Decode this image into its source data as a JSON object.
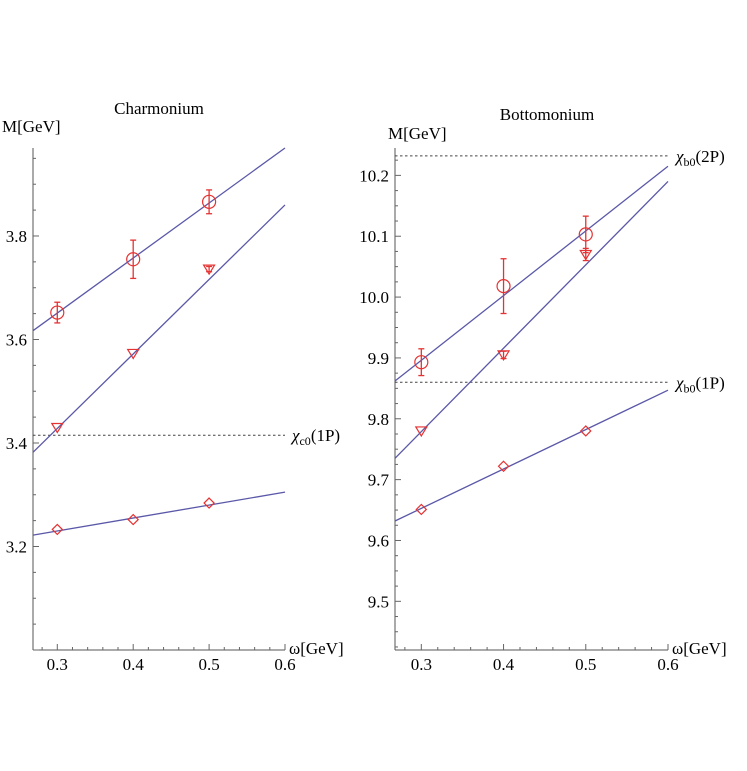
{
  "chart_data": [
    {
      "type": "scatter",
      "title": "Charmonium",
      "xlabel": "ω[GeV]",
      "ylabel": "M[GeV]",
      "xlim": [
        0.268,
        0.6
      ],
      "ylim": [
        3.0,
        3.97
      ],
      "xticks": [
        0.3,
        0.4,
        0.5,
        0.6
      ],
      "xtick_labels": [
        "0.3",
        "0.4",
        "0.5",
        "0.6"
      ],
      "yticks": [
        3.2,
        3.4,
        3.6,
        3.8
      ],
      "ytick_labels": [
        "3.2",
        "3.4",
        "3.6",
        "3.8"
      ],
      "series": [
        {
          "marker": "circle",
          "x": [
            0.3,
            0.4,
            0.5
          ],
          "y": [
            3.652,
            3.755,
            3.866
          ],
          "err": [
            0.02,
            0.037,
            0.023
          ]
        },
        {
          "marker": "triangle",
          "x": [
            0.3,
            0.4,
            0.5
          ],
          "y": [
            3.43,
            3.573,
            3.736
          ],
          "err": [
            0,
            0,
            0.005
          ]
        },
        {
          "marker": "diamond",
          "x": [
            0.3,
            0.4,
            0.5
          ],
          "y": [
            3.233,
            3.252,
            3.284
          ],
          "err": [
            0,
            0,
            0
          ]
        }
      ],
      "fit_lines": [
        {
          "x": [
            0.268,
            0.6
          ],
          "y": [
            3.617,
            3.97
          ]
        },
        {
          "x": [
            0.268,
            0.6
          ],
          "y": [
            3.382,
            3.86
          ]
        },
        {
          "x": [
            0.268,
            0.6
          ],
          "y": [
            3.222,
            3.305
          ]
        }
      ],
      "reference_lines": [
        {
          "y": 3.415,
          "label_main": "χ",
          "label_sub": "c0",
          "label_tail": "(1P)"
        }
      ]
    },
    {
      "type": "scatter",
      "title": "Bottomonium",
      "xlabel": "ω[GeV]",
      "ylabel": "M[GeV]",
      "xlim": [
        0.268,
        0.6
      ],
      "ylim": [
        9.42,
        10.245
      ],
      "xticks": [
        0.3,
        0.4,
        0.5,
        0.6
      ],
      "xtick_labels": [
        "0.3",
        "0.4",
        "0.5",
        "0.6"
      ],
      "yticks": [
        9.5,
        9.6,
        9.7,
        9.8,
        9.9,
        10.0,
        10.1,
        10.2
      ],
      "ytick_labels": [
        "9.5",
        "9.6",
        "9.7",
        "9.8",
        "9.9",
        "10.0",
        "10.1",
        "10.2"
      ],
      "series": [
        {
          "marker": "circle",
          "x": [
            0.3,
            0.4,
            0.5
          ],
          "y": [
            9.893,
            10.018,
            10.103
          ],
          "err": [
            0.022,
            0.045,
            0.03
          ]
        },
        {
          "marker": "triangle",
          "x": [
            0.3,
            0.4,
            0.5
          ],
          "y": [
            9.78,
            9.905,
            10.07
          ],
          "err": [
            0,
            0.006,
            0.01
          ]
        },
        {
          "marker": "diamond",
          "x": [
            0.3,
            0.4,
            0.5
          ],
          "y": [
            9.651,
            9.722,
            9.78
          ],
          "err": [
            0,
            0,
            0
          ]
        }
      ],
      "fit_lines": [
        {
          "x": [
            0.268,
            0.6
          ],
          "y": [
            9.862,
            10.215
          ]
        },
        {
          "x": [
            0.268,
            0.6
          ],
          "y": [
            9.735,
            10.19
          ]
        },
        {
          "x": [
            0.268,
            0.6
          ],
          "y": [
            9.632,
            9.847
          ]
        }
      ],
      "reference_lines": [
        {
          "y": 10.232,
          "label_main": "χ",
          "label_sub": "b0",
          "label_tail": "(2P)"
        },
        {
          "y": 9.86,
          "label_main": "χ",
          "label_sub": "b0",
          "label_tail": "(1P)"
        }
      ]
    }
  ]
}
